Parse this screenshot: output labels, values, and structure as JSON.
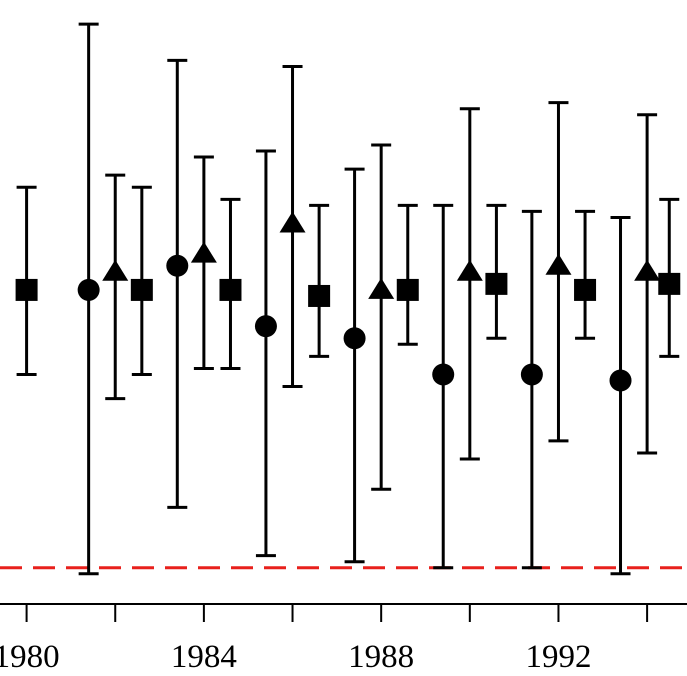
{
  "chart_data": {
    "type": "scatter",
    "title": "",
    "xlabel": "",
    "ylabel": "",
    "xlim": [
      1979.4,
      1994.9
    ],
    "ylim": [
      0,
      1
    ],
    "x_ticks": [
      1980,
      1982,
      1984,
      1986,
      1988,
      1990,
      1992,
      1994
    ],
    "x_tick_labels": [
      "1980",
      "1984",
      "1988",
      "1992"
    ],
    "x_tick_label_values": [
      1980,
      1984,
      1988,
      1992
    ],
    "reference_line": {
      "y": 0.06,
      "style": "dashed",
      "color": "#e8201c"
    },
    "error_bars": true,
    "grid": false,
    "series": [
      {
        "marker": "circle",
        "points": [
          {
            "x": 1981.4,
            "y": 0.52,
            "lo": 0.05,
            "hi": 0.96
          },
          {
            "x": 1983.4,
            "y": 0.56,
            "lo": 0.16,
            "hi": 0.9
          },
          {
            "x": 1985.4,
            "y": 0.46,
            "lo": 0.08,
            "hi": 0.75
          },
          {
            "x": 1987.4,
            "y": 0.44,
            "lo": 0.07,
            "hi": 0.72
          },
          {
            "x": 1989.4,
            "y": 0.38,
            "lo": 0.06,
            "hi": 0.66
          },
          {
            "x": 1991.4,
            "y": 0.38,
            "lo": 0.06,
            "hi": 0.65
          },
          {
            "x": 1993.4,
            "y": 0.37,
            "lo": 0.05,
            "hi": 0.64
          }
        ]
      },
      {
        "marker": "triangle",
        "points": [
          {
            "x": 1982.0,
            "y": 0.55,
            "lo": 0.34,
            "hi": 0.71
          },
          {
            "x": 1984.0,
            "y": 0.58,
            "lo": 0.39,
            "hi": 0.74
          },
          {
            "x": 1986.0,
            "y": 0.63,
            "lo": 0.36,
            "hi": 0.89
          },
          {
            "x": 1988.0,
            "y": 0.52,
            "lo": 0.19,
            "hi": 0.76
          },
          {
            "x": 1990.0,
            "y": 0.55,
            "lo": 0.24,
            "hi": 0.82
          },
          {
            "x": 1992.0,
            "y": 0.56,
            "lo": 0.27,
            "hi": 0.83
          },
          {
            "x": 1994.0,
            "y": 0.55,
            "lo": 0.25,
            "hi": 0.81
          }
        ]
      },
      {
        "marker": "square",
        "points": [
          {
            "x": 1980.0,
            "y": 0.52,
            "lo": 0.38,
            "hi": 0.69
          },
          {
            "x": 1982.6,
            "y": 0.52,
            "lo": 0.38,
            "hi": 0.69
          },
          {
            "x": 1984.6,
            "y": 0.52,
            "lo": 0.39,
            "hi": 0.67
          },
          {
            "x": 1986.6,
            "y": 0.51,
            "lo": 0.41,
            "hi": 0.66
          },
          {
            "x": 1988.6,
            "y": 0.52,
            "lo": 0.43,
            "hi": 0.66
          },
          {
            "x": 1990.6,
            "y": 0.53,
            "lo": 0.44,
            "hi": 0.66
          },
          {
            "x": 1992.6,
            "y": 0.52,
            "lo": 0.44,
            "hi": 0.65
          },
          {
            "x": 1994.5,
            "y": 0.53,
            "lo": 0.41,
            "hi": 0.67
          }
        ]
      }
    ]
  }
}
